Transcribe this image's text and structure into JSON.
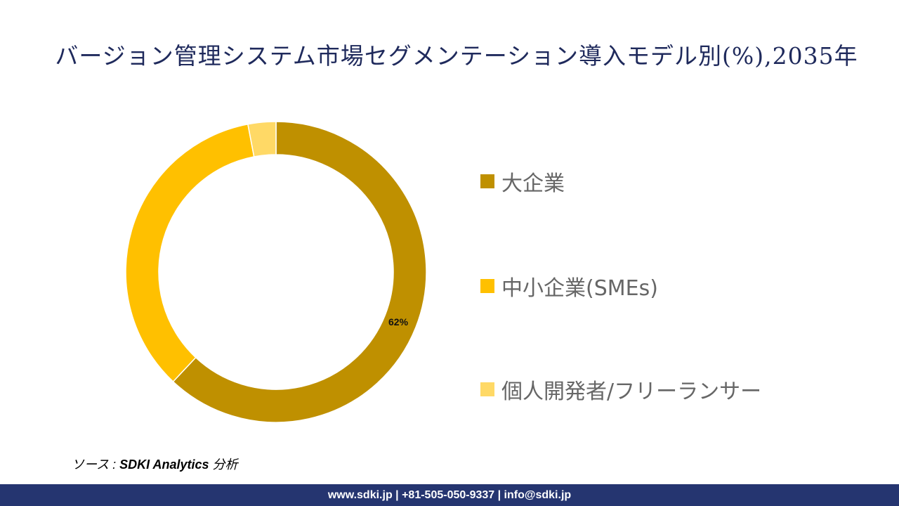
{
  "title": "バージョン管理システム市場セグメンテーション導入モデル別(%),2035年",
  "chart_data": {
    "type": "pie",
    "subtype": "donut",
    "title": "バージョン管理システム市場セグメンテーション導入モデル別(%),2035年",
    "categories": [
      "大企業",
      "中小企業(SMEs)",
      "個人開発者/フリーランサー"
    ],
    "values": [
      62,
      35,
      3
    ],
    "unit": "%",
    "colors": [
      "#BF9000",
      "#FFC000",
      "#FFD966"
    ],
    "data_labels": [
      {
        "category": "大企業",
        "text": "62%"
      }
    ],
    "legend_position": "right",
    "start_angle_deg": 0,
    "direction": "clockwise"
  },
  "legend": {
    "items": [
      {
        "label": "大企業",
        "color": "#BF9000"
      },
      {
        "label": "中小企業(SMEs)",
        "color": "#FFC000"
      },
      {
        "label": "個人開発者/フリーランサー",
        "color": "#FFD966"
      }
    ]
  },
  "data_label": "62%",
  "source": {
    "prefix": "ソース : ",
    "org": "SDKI Analytics",
    "suffix": " 分析"
  },
  "footer": {
    "text": "www.sdki.jp | +81-505-050-9337 | info@sdki.jp"
  }
}
